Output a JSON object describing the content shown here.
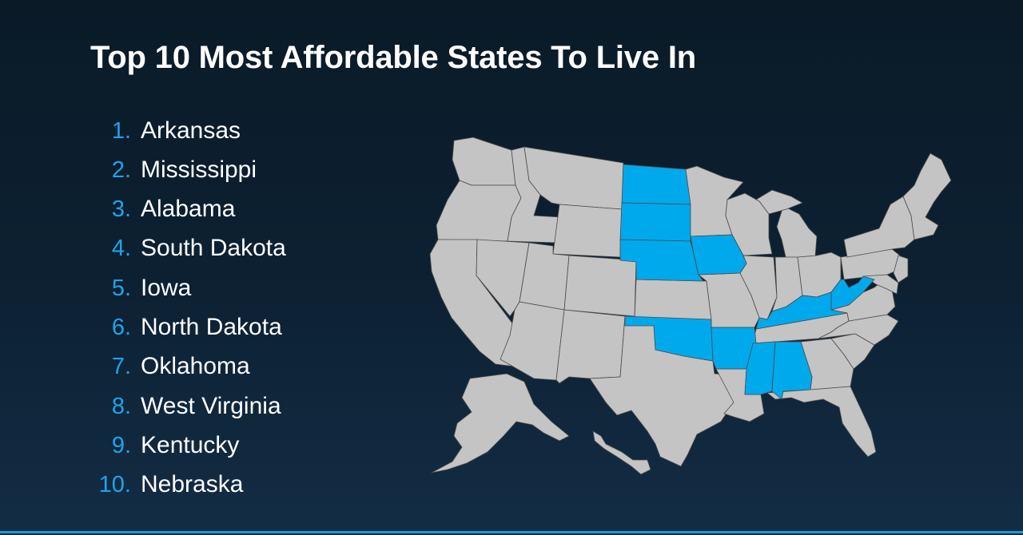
{
  "title": "Top 10 Most Affordable States To Live In",
  "colors": {
    "title": "#ffffff",
    "rank_number": "#1fa3ea",
    "state_name": "#ffffff",
    "highlighted_state": "#00a9ec",
    "other_state": "#c4c4c4",
    "state_border": "#4a4a4a",
    "bottom_accent": "#1f9ad9"
  },
  "ranking": [
    {
      "rank": "1.",
      "state": "Arkansas"
    },
    {
      "rank": "2.",
      "state": "Mississippi"
    },
    {
      "rank": "3.",
      "state": "Alabama"
    },
    {
      "rank": "4.",
      "state": "South Dakota"
    },
    {
      "rank": "5.",
      "state": "Iowa"
    },
    {
      "rank": "6.",
      "state": "North Dakota"
    },
    {
      "rank": "7.",
      "state": "Oklahoma"
    },
    {
      "rank": "8.",
      "state": "West Virginia"
    },
    {
      "rank": "9.",
      "state": "Kentucky"
    },
    {
      "rank": "10.",
      "state": "Nebraska"
    }
  ],
  "map": {
    "highlighted_states": [
      "Arkansas",
      "Mississippi",
      "Alabama",
      "South Dakota",
      "Iowa",
      "North Dakota",
      "Oklahoma",
      "West Virginia",
      "Kentucky",
      "Nebraska"
    ]
  }
}
